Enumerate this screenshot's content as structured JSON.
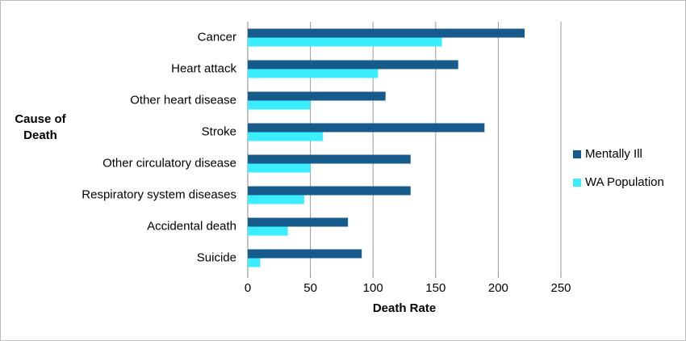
{
  "chart_data": {
    "type": "hbar",
    "x_label": "Death Rate",
    "y_label": "Cause of Death",
    "categories": [
      "Cancer",
      "Heart attack",
      "Other heart disease",
      "Stroke",
      "Other circulatory disease",
      "Respiratory system diseases",
      "Accidental death",
      "Suicide"
    ],
    "series": [
      {
        "name": "Mentally Ill",
        "color": "#175a8c",
        "values": [
          221,
          168,
          110,
          189,
          130,
          130,
          80,
          91
        ]
      },
      {
        "name": "WA Population",
        "color": "#3beeff",
        "values": [
          155,
          104,
          50,
          60,
          50,
          45,
          32,
          10
        ]
      }
    ],
    "xlim": [
      0,
      250
    ],
    "xticks": [
      0,
      50,
      100,
      150,
      200,
      250
    ],
    "grid": true,
    "legend": "right"
  }
}
